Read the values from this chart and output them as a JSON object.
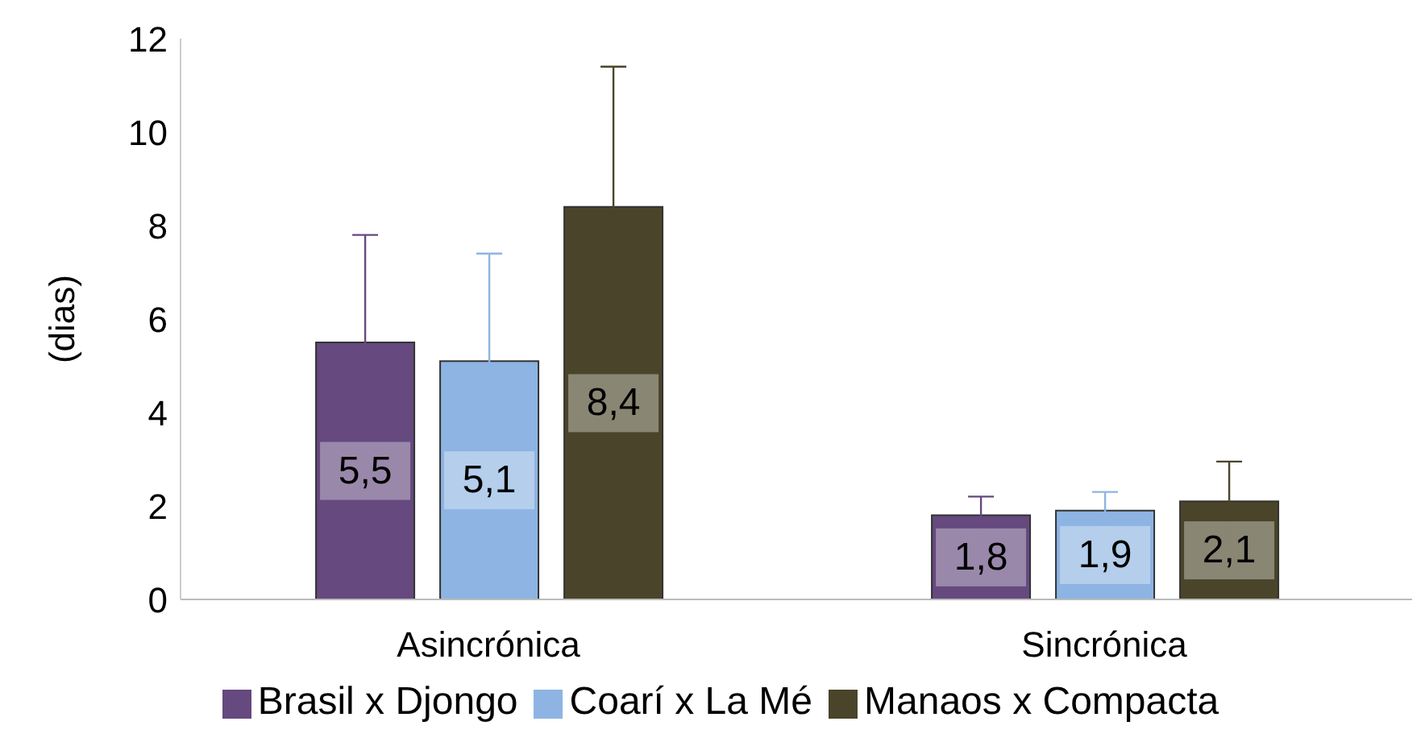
{
  "chart_data": {
    "type": "bar",
    "ylabel": "(dias)",
    "categories": [
      "Asincrónica",
      "Sincrónica"
    ],
    "series": [
      {
        "name": "Brasil x Djongo",
        "color": "#65497f",
        "values": [
          5.5,
          1.8
        ],
        "value_labels": [
          "5,5",
          "1,8"
        ],
        "errors": [
          2.3,
          0.4
        ]
      },
      {
        "name": "Coarí x La Mé",
        "color": "#8db4e2",
        "values": [
          5.1,
          1.9
        ],
        "value_labels": [
          "5,1",
          "1,9"
        ],
        "errors": [
          2.3,
          0.4
        ]
      },
      {
        "name": "Manaos x Compacta",
        "color": "#4a452a",
        "values": [
          8.4,
          2.1
        ],
        "value_labels": [
          "8,4",
          "2,1"
        ],
        "errors": [
          3.0,
          0.85
        ]
      }
    ],
    "ylim": [
      0,
      12
    ],
    "yticks": [
      0,
      2,
      4,
      6,
      8,
      10,
      12
    ],
    "grid": false,
    "legend": "bottom"
  }
}
